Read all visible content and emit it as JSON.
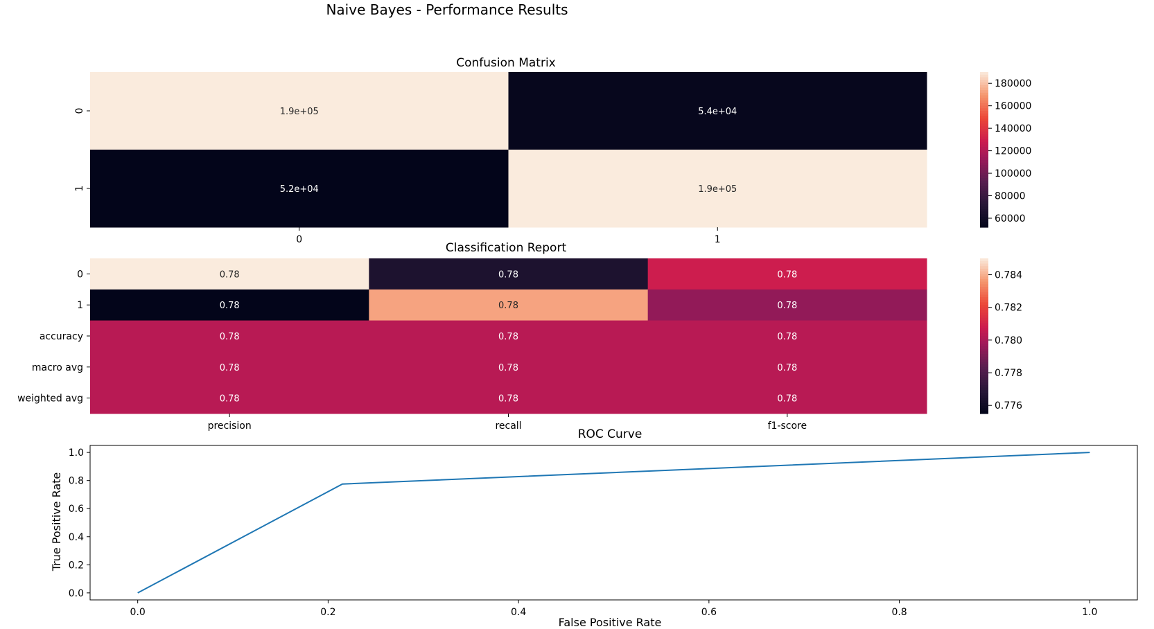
{
  "figure": {
    "title": "Naive Bayes - Performance Results"
  },
  "chart_data": [
    {
      "type": "heatmap",
      "title": "Confusion Matrix",
      "xlabel": "",
      "ylabel": "",
      "x_ticklabels": [
        "0",
        "1"
      ],
      "y_ticklabels": [
        "0",
        "1"
      ],
      "values": [
        [
          190000,
          54000
        ],
        [
          52000,
          190000
        ]
      ],
      "annotations": [
        [
          "1.9e+05",
          "5.4e+04"
        ],
        [
          "5.2e+04",
          "1.9e+05"
        ]
      ],
      "colorbar": {
        "min": 52000,
        "max": 190000,
        "ticks": [
          60000,
          80000,
          100000,
          120000,
          140000,
          160000,
          180000
        ],
        "ticklabels": [
          "60000",
          "80000",
          "100000",
          "120000",
          "140000",
          "160000",
          "180000"
        ]
      },
      "colormap": "rocket"
    },
    {
      "type": "heatmap",
      "title": "Classification Report",
      "xlabel": "",
      "ylabel": "",
      "x_ticklabels": [
        "precision",
        "recall",
        "f1-score"
      ],
      "y_ticklabels": [
        "0",
        "1",
        "accuracy",
        "macro avg",
        "weighted avg"
      ],
      "values": [
        [
          0.785,
          0.7765,
          0.7808
        ],
        [
          0.7755,
          0.7838,
          0.7795
        ],
        [
          0.7803,
          0.7803,
          0.7803
        ],
        [
          0.7803,
          0.7803,
          0.7803
        ],
        [
          0.7803,
          0.7803,
          0.7803
        ]
      ],
      "annotations": [
        [
          "0.78",
          "0.78",
          "0.78"
        ],
        [
          "0.78",
          "0.78",
          "0.78"
        ],
        [
          "0.78",
          "0.78",
          "0.78"
        ],
        [
          "0.78",
          "0.78",
          "0.78"
        ],
        [
          "0.78",
          "0.78",
          "0.78"
        ]
      ],
      "colorbar": {
        "min": 0.7755,
        "max": 0.785,
        "ticks": [
          0.776,
          0.778,
          0.78,
          0.782,
          0.784
        ],
        "ticklabels": [
          "0.776",
          "0.778",
          "0.780",
          "0.782",
          "0.784"
        ]
      },
      "colormap": "rocket"
    },
    {
      "type": "line",
      "title": "ROC Curve",
      "xlabel": "False Positive Rate",
      "ylabel": "True Positive Rate",
      "xlim": [
        -0.05,
        1.05
      ],
      "ylim": [
        -0.05,
        1.05
      ],
      "x_ticks": [
        0.0,
        0.2,
        0.4,
        0.6,
        0.8,
        1.0
      ],
      "y_ticks": [
        0.0,
        0.2,
        0.4,
        0.6,
        0.8,
        1.0
      ],
      "x_ticklabels": [
        "0.0",
        "0.2",
        "0.4",
        "0.6",
        "0.8",
        "1.0"
      ],
      "y_ticklabels": [
        "0.0",
        "0.2",
        "0.4",
        "0.6",
        "0.8",
        "1.0"
      ],
      "series": [
        {
          "x": [
            0.0,
            0.215,
            1.0
          ],
          "y": [
            0.0,
            0.775,
            1.0
          ],
          "color": "#1f77b4"
        }
      ],
      "grid": false
    }
  ]
}
